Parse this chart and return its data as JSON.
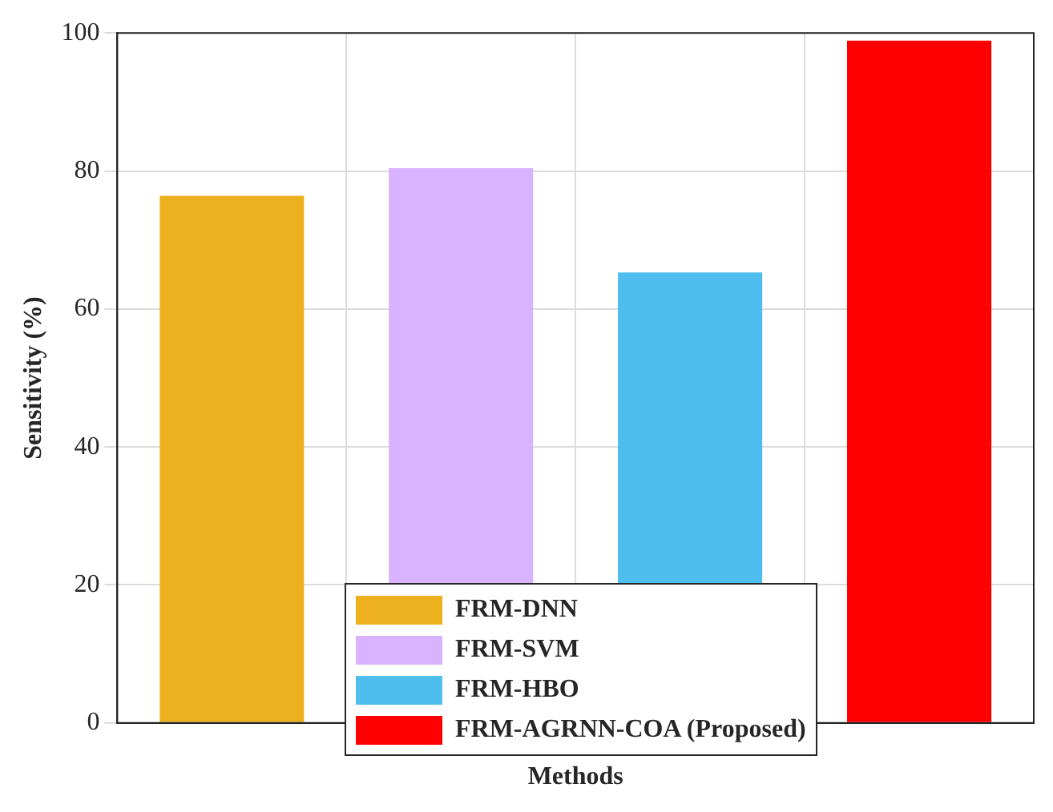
{
  "chart_data": {
    "type": "bar",
    "xlabel": "Methods",
    "ylabel": "Sensitivity (%)",
    "categories": [
      null,
      null,
      null,
      null
    ],
    "series": [
      {
        "name": "FRM-DNN",
        "color": "#edb120",
        "values": [
          76.4,
          null,
          null,
          null
        ]
      },
      {
        "name": "FRM-SVM",
        "color": "#d9b3ff",
        "values": [
          null,
          80.4,
          null,
          null
        ]
      },
      {
        "name": "FRM-HBO",
        "color": "#4dbeee",
        "values": [
          null,
          null,
          65.3,
          null
        ]
      },
      {
        "name": "FRM-AGRNN-COA (Proposed)",
        "color": "#ff0000",
        "values": [
          null,
          null,
          null,
          98.9
        ]
      }
    ],
    "ylim": [
      0,
      100
    ],
    "yticks": [
      0,
      20,
      40,
      60,
      80,
      100
    ],
    "grid": true,
    "legend": "bottom"
  }
}
